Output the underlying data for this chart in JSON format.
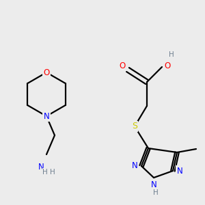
{
  "background_color": "#ececec",
  "atoms": {
    "C": "#000000",
    "N": "#0000ff",
    "O": "#ff0000",
    "S": "#cccc00",
    "H": "#708090"
  },
  "figsize": [
    3.0,
    3.0
  ],
  "dpi": 100,
  "lw": 1.6,
  "fs": 8.5
}
